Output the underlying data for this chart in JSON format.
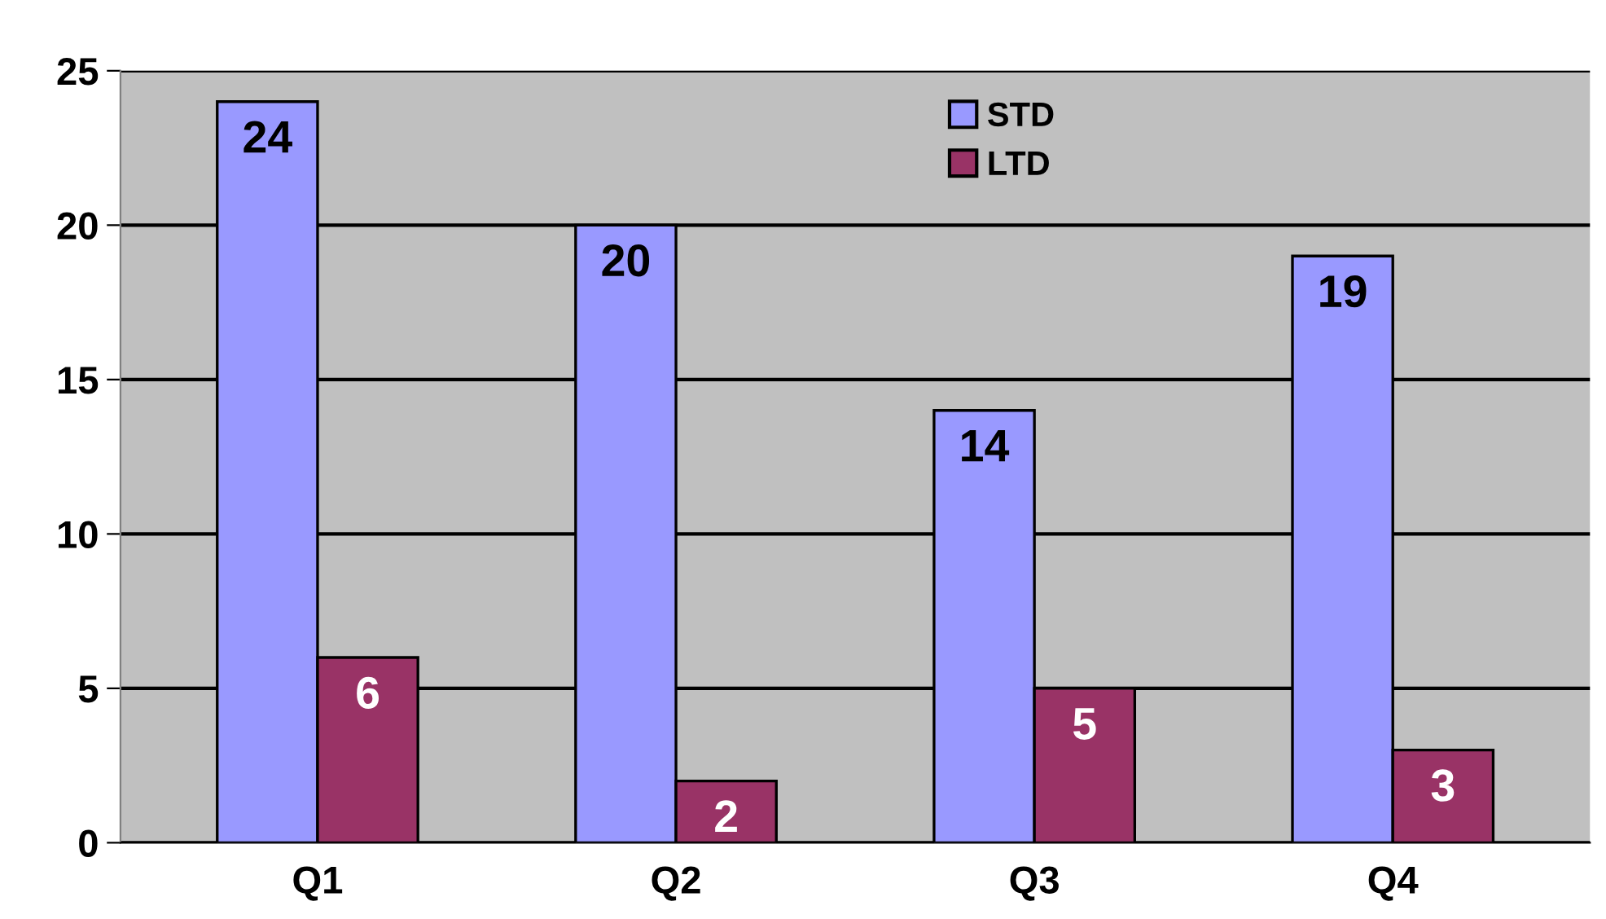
{
  "chart_data": {
    "type": "bar",
    "categories": [
      "Q1",
      "Q2",
      "Q3",
      "Q4"
    ],
    "series": [
      {
        "name": "STD",
        "color": "#9999ff",
        "values": [
          24,
          20,
          14,
          19
        ]
      },
      {
        "name": "LTD",
        "color": "#993366",
        "values": [
          6,
          2,
          5,
          3
        ]
      }
    ],
    "ylim": [
      0,
      25
    ],
    "yticks": [
      0,
      5,
      10,
      15,
      20,
      25
    ],
    "grid": "y",
    "legend": "top",
    "data_labels": true
  }
}
